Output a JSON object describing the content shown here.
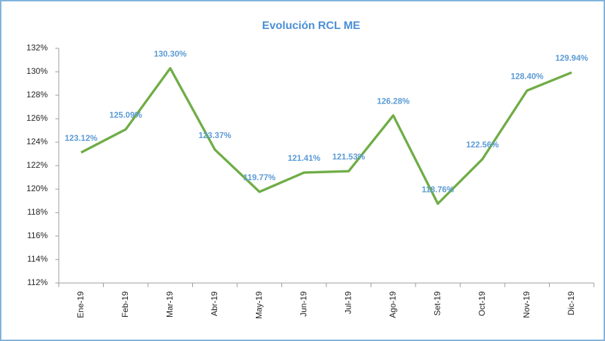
{
  "chart_data": {
    "type": "line",
    "title": "Evolución RCL ME",
    "categories": [
      "Ene-19",
      "Feb-19",
      "Mar-19",
      "Abr-19",
      "May-19",
      "Jun-19",
      "Jul-19",
      "Ago-19",
      "Set-19",
      "Oct-19",
      "Nov-19",
      "Dic-19"
    ],
    "series": [
      {
        "name": "RCL ME",
        "color": "#70ad47",
        "values": [
          123.12,
          125.09,
          130.3,
          123.37,
          119.77,
          121.41,
          121.53,
          126.28,
          118.76,
          122.56,
          128.4,
          129.94
        ],
        "value_labels": [
          "123.12%",
          "125.09%",
          "130.30%",
          "123.37%",
          "119.77%",
          "121.41%",
          "121.53%",
          "126.28%",
          "118.76%",
          "122.56%",
          "128.40%",
          "129.94%"
        ]
      }
    ],
    "ylim": [
      112,
      132
    ],
    "yticks": [
      {
        "value": 112,
        "label": "112%"
      },
      {
        "value": 114,
        "label": "114%"
      },
      {
        "value": 116,
        "label": "116%"
      },
      {
        "value": 118,
        "label": "118%"
      },
      {
        "value": 120,
        "label": "120%"
      },
      {
        "value": 122,
        "label": "122%"
      },
      {
        "value": 124,
        "label": "124%"
      },
      {
        "value": 126,
        "label": "126%"
      },
      {
        "value": 128,
        "label": "128%"
      },
      {
        "value": 130,
        "label": "130%"
      },
      {
        "value": 132,
        "label": "132%"
      }
    ],
    "grid": false
  }
}
